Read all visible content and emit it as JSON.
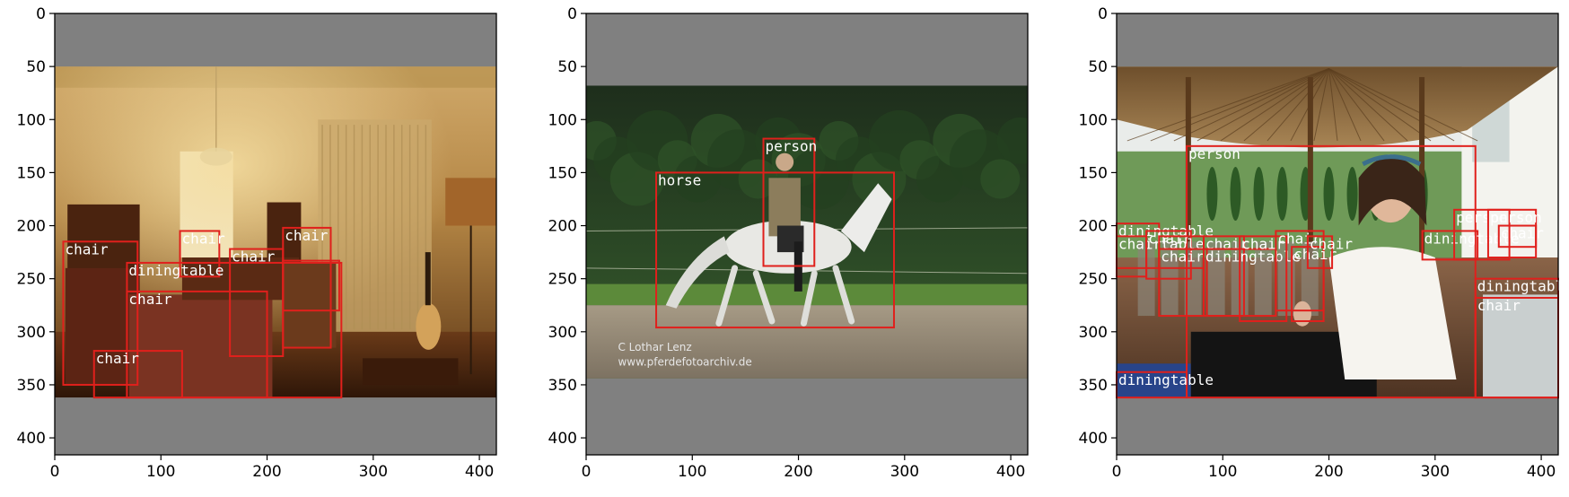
{
  "panels": [
    {
      "name": "panel-living-room",
      "axis": {
        "xlim": [
          0,
          416
        ],
        "ylim": [
          416,
          0
        ],
        "xticks": [
          0,
          100,
          200,
          300,
          400
        ],
        "yticks": [
          0,
          50,
          100,
          150,
          200,
          250,
          300,
          350,
          400
        ]
      },
      "image": {
        "extent": [
          0,
          416,
          50,
          362
        ],
        "palette": "warm-interior"
      },
      "detections": [
        {
          "label": "chair",
          "box": [
            8,
            215,
            78,
            350
          ]
        },
        {
          "label": "chair",
          "box": [
            118,
            205,
            155,
            248
          ]
        },
        {
          "label": "chair",
          "box": [
            165,
            222,
            215,
            323
          ]
        },
        {
          "label": "chair",
          "box": [
            215,
            202,
            260,
            315
          ]
        },
        {
          "label": "diningtable",
          "box": [
            68,
            235,
            270,
            362
          ]
        },
        {
          "label": "chair",
          "box": [
            68,
            262,
            200,
            362
          ]
        },
        {
          "label": "chair",
          "box": [
            37,
            318,
            120,
            362
          ]
        },
        {
          "label": "",
          "box": [
            215,
            233,
            268,
            280
          ]
        }
      ]
    },
    {
      "name": "panel-horse-rider",
      "axis": {
        "xlim": [
          0,
          416
        ],
        "ylim": [
          416,
          0
        ],
        "xticks": [
          0,
          100,
          200,
          300,
          400
        ],
        "yticks": [
          0,
          50,
          100,
          150,
          200,
          250,
          300,
          350,
          400
        ]
      },
      "image": {
        "extent": [
          0,
          416,
          68,
          344
        ],
        "palette": "green-arena",
        "watermark": [
          "C    Lothar Lenz",
          "www.pferdefotoarchiv.de"
        ]
      },
      "detections": [
        {
          "label": "person",
          "box": [
            167,
            118,
            215,
            238
          ]
        },
        {
          "label": "horse",
          "box": [
            66,
            150,
            290,
            296
          ]
        }
      ]
    },
    {
      "name": "panel-woman-patio",
      "axis": {
        "xlim": [
          0,
          416
        ],
        "ylim": [
          416,
          0
        ],
        "xticks": [
          0,
          100,
          200,
          300,
          400
        ],
        "yticks": [
          0,
          50,
          100,
          150,
          200,
          250,
          300,
          350,
          400
        ]
      },
      "image": {
        "extent": [
          0,
          416,
          50,
          362
        ],
        "palette": "bright-patio"
      },
      "detections": [
        {
          "label": "person",
          "box": [
            66,
            125,
            338,
            362
          ]
        },
        {
          "label": "diningtable",
          "box": [
            288,
            205,
            340,
            232
          ]
        },
        {
          "label": "person",
          "box": [
            318,
            185,
            370,
            232
          ]
        },
        {
          "label": "person",
          "box": [
            350,
            185,
            395,
            230
          ]
        },
        {
          "label": "chair",
          "box": [
            360,
            200,
            395,
            220
          ]
        },
        {
          "label": "diningtable",
          "box": [
            338,
            250,
            416,
            362
          ]
        },
        {
          "label": "chair",
          "box": [
            338,
            268,
            416,
            362
          ]
        },
        {
          "label": "diningtable",
          "box": [
            0,
            338,
            66,
            362
          ]
        },
        {
          "label": "diningtable",
          "box": [
            0,
            198,
            40,
            240
          ]
        },
        {
          "label": "chair",
          "box": [
            0,
            210,
            28,
            248
          ]
        },
        {
          "label": "chair",
          "box": [
            28,
            205,
            70,
            250
          ]
        },
        {
          "label": "table",
          "box": [
            40,
            210,
            82,
            240
          ]
        },
        {
          "label": "chair",
          "box": [
            40,
            222,
            85,
            285
          ]
        },
        {
          "label": "chair",
          "box": [
            82,
            210,
            120,
            285
          ]
        },
        {
          "label": "diningtable",
          "box": [
            82,
            222,
            150,
            285
          ]
        },
        {
          "label": "chair",
          "box": [
            116,
            210,
            160,
            290
          ]
        },
        {
          "label": "chair",
          "box": [
            150,
            205,
            195,
            280
          ]
        },
        {
          "label": "chair",
          "box": [
            165,
            220,
            195,
            290
          ]
        },
        {
          "label": "chair",
          "box": [
            180,
            210,
            203,
            240
          ]
        }
      ]
    }
  ],
  "colors": {
    "padding": "#808080",
    "box": "#e0201c",
    "label_text": "#ffffff"
  }
}
